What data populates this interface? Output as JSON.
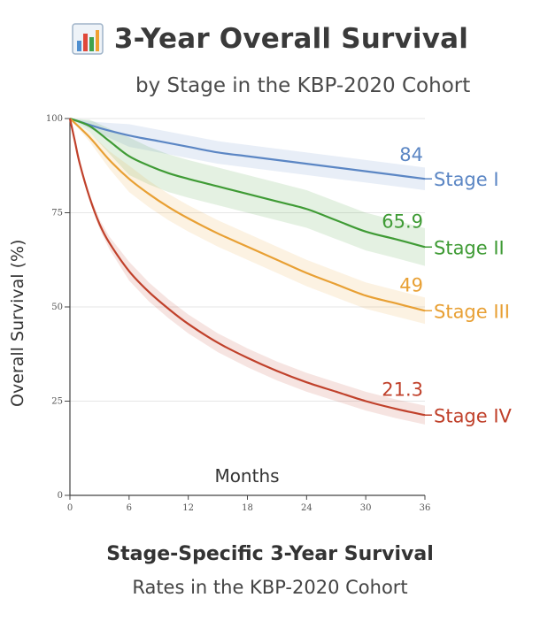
{
  "header": {
    "title": "3-Year Overall Survival",
    "subtitle": "by Stage in the KBP-2020 Cohort",
    "icon": "bar-chart-icon"
  },
  "footer": {
    "title": "Stage-Specific 3-Year Survival",
    "subtitle": "Rates in the KBP-2020 Cohort"
  },
  "chart_data": {
    "type": "line",
    "title": "3-Year Overall Survival",
    "xlabel": "Months",
    "ylabel": "Overall Survival (%)",
    "xlim": [
      0,
      36
    ],
    "ylim": [
      0,
      100
    ],
    "xticks": [
      0,
      6,
      12,
      18,
      24,
      30,
      36
    ],
    "yticks": [
      0,
      25,
      50,
      75,
      100
    ],
    "grid": "horizontal",
    "series": [
      {
        "name": "Stage I",
        "color": "#5b86c4",
        "end_label": "84",
        "x": [
          0,
          3,
          6,
          9,
          12,
          15,
          18,
          21,
          24,
          27,
          30,
          33,
          36
        ],
        "y": [
          100,
          97.5,
          95.5,
          94,
          92.5,
          91,
          90,
          89,
          88,
          87,
          86,
          85,
          84
        ]
      },
      {
        "name": "Stage II",
        "color": "#3f9b35",
        "end_label": "65.9",
        "x": [
          0,
          2,
          4,
          6,
          8,
          10,
          12,
          15,
          18,
          21,
          24,
          27,
          30,
          33,
          36
        ],
        "y": [
          100,
          98,
          94,
          90,
          87.5,
          85.5,
          84,
          82,
          80,
          78,
          76,
          73,
          70,
          68,
          65.9
        ]
      },
      {
        "name": "Stage III",
        "color": "#e8a034",
        "end_label": "49",
        "x": [
          0,
          2,
          4,
          6,
          8,
          10,
          12,
          15,
          18,
          21,
          24,
          27,
          30,
          33,
          36
        ],
        "y": [
          100,
          95,
          89,
          84,
          80,
          76.5,
          73.5,
          69.5,
          66,
          62.5,
          59,
          56,
          53,
          51,
          49
        ]
      },
      {
        "name": "Stage IV",
        "color": "#c0412b",
        "end_label": "21.3",
        "x": [
          0,
          0.5,
          1,
          2,
          3,
          4,
          6,
          8,
          10,
          12,
          15,
          18,
          21,
          24,
          27,
          30,
          33,
          36
        ],
        "y": [
          100,
          94,
          88,
          79,
          72,
          67,
          59.5,
          54,
          49.5,
          45.5,
          40.5,
          36.5,
          33,
          30,
          27.5,
          25,
          23,
          21.3
        ]
      }
    ]
  }
}
